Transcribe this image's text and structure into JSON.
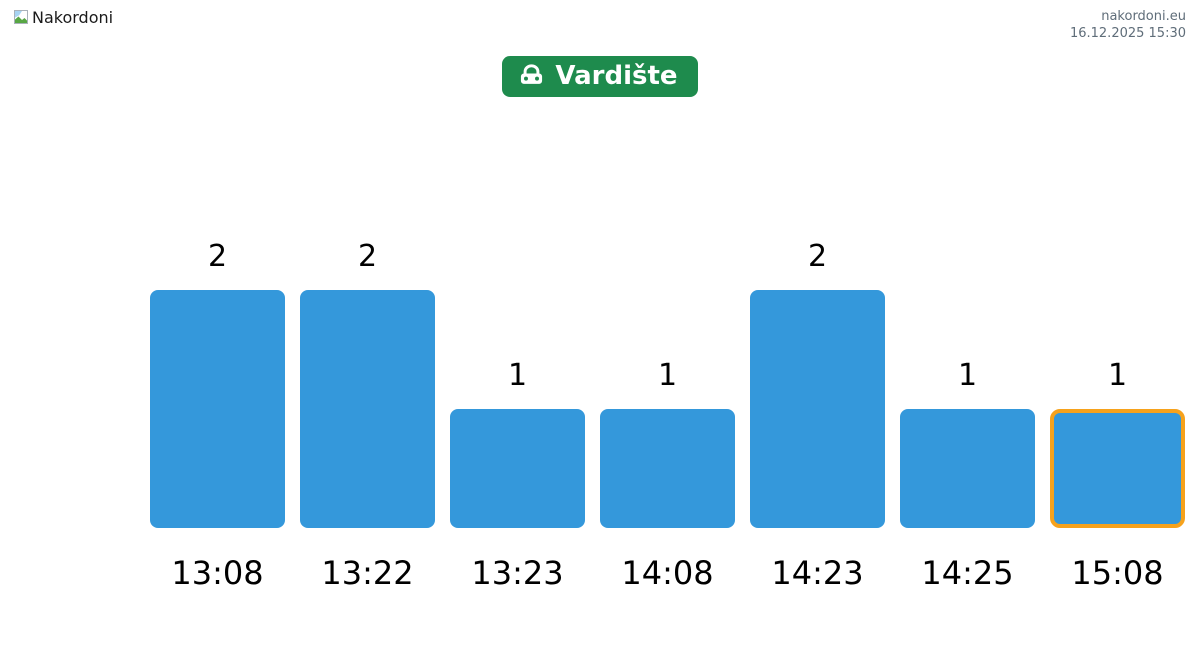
{
  "header": {
    "logo_alt": "Nakordoni",
    "site": "nakordoni.eu",
    "timestamp": "16.12.2025 15:30"
  },
  "title_button": {
    "label": "Vardište",
    "icon": "car-front-icon"
  },
  "colors": {
    "bar": "#3498db",
    "highlight_border": "#f6a21c",
    "button_bg": "#1e8b4d",
    "header_info_text": "#5f6d79"
  },
  "chart_data": {
    "type": "bar",
    "title": "Vardište",
    "categories": [
      "13:08",
      "13:22",
      "13:23",
      "14:08",
      "14:23",
      "14:25",
      "15:08"
    ],
    "values": [
      2,
      2,
      1,
      1,
      2,
      1,
      1
    ],
    "value_labels": [
      "2",
      "2",
      "1",
      "1",
      "2",
      "1",
      "1"
    ],
    "highlighted_index": 6,
    "xlabel": "",
    "ylabel": "",
    "ylim": [
      0,
      2
    ],
    "grid": false,
    "legend": false,
    "bar_color": "#3498db",
    "highlighted_bar_border_color": "#f6a21c"
  }
}
